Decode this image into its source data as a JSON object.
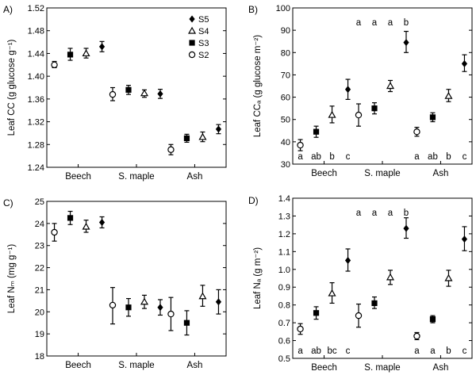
{
  "chart_data": [
    {
      "type": "scatter",
      "panel_label": "A)",
      "ylabel": "Leaf CC (g glucose g⁻¹)",
      "ylim": [
        1.24,
        1.52
      ],
      "yticks": [
        1.24,
        1.28,
        1.32,
        1.36,
        1.4,
        1.44,
        1.48,
        1.52
      ],
      "ytick_labels": [
        "1.24",
        "1.28",
        "1.32",
        "1.36",
        "1.40",
        "1.44",
        "1.48",
        "1.52"
      ],
      "categories": [
        "Beech",
        "S. maple",
        "Ash"
      ],
      "legend": {
        "placement": "top-right",
        "entries": [
          {
            "label": "S5",
            "marker": "diamond"
          },
          {
            "label": "S4",
            "marker": "triangle-open"
          },
          {
            "label": "S3",
            "marker": "square"
          },
          {
            "label": "S2",
            "marker": "circle-open"
          }
        ]
      },
      "groups": [
        {
          "species": "Beech",
          "points": [
            {
              "marker": "circle-open",
              "mean": 1.42,
              "lo": 1.415,
              "hi": 1.426
            },
            {
              "marker": "square",
              "mean": 1.438,
              "lo": 1.428,
              "hi": 1.449
            },
            {
              "marker": "triangle-open",
              "mean": 1.44,
              "lo": 1.432,
              "hi": 1.449
            },
            {
              "marker": "diamond",
              "mean": 1.452,
              "lo": 1.443,
              "hi": 1.461
            }
          ],
          "letters": []
        },
        {
          "species": "S. maple",
          "points": [
            {
              "marker": "circle-open",
              "mean": 1.368,
              "lo": 1.357,
              "hi": 1.38
            },
            {
              "marker": "square",
              "mean": 1.376,
              "lo": 1.368,
              "hi": 1.384
            },
            {
              "marker": "triangle-open",
              "mean": 1.37,
              "lo": 1.363,
              "hi": 1.376
            },
            {
              "marker": "diamond",
              "mean": 1.369,
              "lo": 1.361,
              "hi": 1.377
            }
          ],
          "letters": []
        },
        {
          "species": "Ash",
          "points": [
            {
              "marker": "circle-open",
              "mean": 1.271,
              "lo": 1.262,
              "hi": 1.28
            },
            {
              "marker": "square",
              "mean": 1.291,
              "lo": 1.284,
              "hi": 1.298
            },
            {
              "marker": "triangle-open",
              "mean": 1.293,
              "lo": 1.285,
              "hi": 1.302
            },
            {
              "marker": "diamond",
              "mean": 1.307,
              "lo": 1.299,
              "hi": 1.315
            }
          ],
          "letters": []
        }
      ]
    },
    {
      "type": "scatter",
      "panel_label": "B)",
      "ylabel": "Leaf CCₐ (g glucose m⁻²)",
      "ylim": [
        30,
        100
      ],
      "yticks": [
        30,
        40,
        50,
        60,
        70,
        80,
        90,
        100
      ],
      "ytick_labels": [
        "30",
        "40",
        "50",
        "60",
        "70",
        "80",
        "90",
        "100"
      ],
      "categories": [
        "Beech",
        "S. maple",
        "Ash"
      ],
      "groups": [
        {
          "species": "Beech",
          "points": [
            {
              "marker": "circle-open",
              "mean": 38.5,
              "lo": 36.0,
              "hi": 41.0
            },
            {
              "marker": "square",
              "mean": 44.5,
              "lo": 42.0,
              "hi": 47.0
            },
            {
              "marker": "triangle-open",
              "mean": 52.0,
              "lo": 48.5,
              "hi": 56.0
            },
            {
              "marker": "diamond",
              "mean": 63.5,
              "lo": 59.0,
              "hi": 68.0
            }
          ],
          "letters": [
            "a",
            "ab",
            "b",
            "c"
          ],
          "letters_position": "bottom"
        },
        {
          "species": "S. maple",
          "points": [
            {
              "marker": "circle-open",
              "mean": 52.0,
              "lo": 47.0,
              "hi": 57.0
            },
            {
              "marker": "square",
              "mean": 55.0,
              "lo": 52.5,
              "hi": 57.5
            },
            {
              "marker": "triangle-open",
              "mean": 65.0,
              "lo": 62.5,
              "hi": 67.5
            },
            {
              "marker": "diamond",
              "mean": 84.5,
              "lo": 80.0,
              "hi": 89.5
            }
          ],
          "letters": [
            "a",
            "a",
            "a",
            "b"
          ],
          "letters_position": "top"
        },
        {
          "species": "Ash",
          "points": [
            {
              "marker": "circle-open",
              "mean": 44.5,
              "lo": 42.5,
              "hi": 46.5
            },
            {
              "marker": "square",
              "mean": 51.0,
              "lo": 49.0,
              "hi": 53.0
            },
            {
              "marker": "triangle-open",
              "mean": 60.5,
              "lo": 58.0,
              "hi": 63.5
            },
            {
              "marker": "diamond",
              "mean": 75.0,
              "lo": 71.5,
              "hi": 79.0
            }
          ],
          "letters": [
            "a",
            "ab",
            "b",
            "c"
          ],
          "letters_position": "bottom"
        }
      ]
    },
    {
      "type": "scatter",
      "panel_label": "C)",
      "ylabel": "Leaf Nₘ (mg g⁻¹)",
      "ylim": [
        18,
        25
      ],
      "yticks": [
        18,
        19,
        20,
        21,
        22,
        23,
        24,
        25
      ],
      "ytick_labels": [
        "18",
        "19",
        "20",
        "21",
        "22",
        "23",
        "24",
        "25"
      ],
      "categories": [
        "Beech",
        "S. maple",
        "Ash"
      ],
      "groups": [
        {
          "species": "Beech",
          "points": [
            {
              "marker": "circle-open",
              "mean": 23.6,
              "lo": 23.2,
              "hi": 24.0
            },
            {
              "marker": "square",
              "mean": 24.25,
              "lo": 23.95,
              "hi": 24.55
            },
            {
              "marker": "triangle-open",
              "mean": 23.85,
              "lo": 23.6,
              "hi": 24.15
            },
            {
              "marker": "diamond",
              "mean": 24.05,
              "lo": 23.8,
              "hi": 24.3
            }
          ],
          "letters": []
        },
        {
          "species": "S. maple",
          "points": [
            {
              "marker": "circle-open",
              "mean": 20.3,
              "lo": 19.45,
              "hi": 21.1
            },
            {
              "marker": "square",
              "mean": 20.2,
              "lo": 19.8,
              "hi": 20.6
            },
            {
              "marker": "triangle-open",
              "mean": 20.45,
              "lo": 20.15,
              "hi": 20.75
            },
            {
              "marker": "diamond",
              "mean": 20.2,
              "lo": 19.85,
              "hi": 20.55
            }
          ],
          "letters": []
        },
        {
          "species": "Ash",
          "points": [
            {
              "marker": "circle-open",
              "mean": 19.9,
              "lo": 19.15,
              "hi": 20.65
            },
            {
              "marker": "square",
              "mean": 19.5,
              "lo": 18.95,
              "hi": 20.05
            },
            {
              "marker": "triangle-open",
              "mean": 20.7,
              "lo": 20.25,
              "hi": 21.2
            },
            {
              "marker": "diamond",
              "mean": 20.45,
              "lo": 19.9,
              "hi": 21.0
            }
          ],
          "letters": []
        }
      ]
    },
    {
      "type": "scatter",
      "panel_label": "D)",
      "ylabel": "Leaf Nₐ (g m⁻²)",
      "ylim": [
        0.5,
        1.4
      ],
      "yticks": [
        0.5,
        0.6,
        0.7,
        0.8,
        0.9,
        1.0,
        1.1,
        1.2,
        1.3,
        1.4
      ],
      "ytick_labels": [
        "0.5",
        "0.6",
        "0.7",
        "0.8",
        "0.9",
        "1.0",
        "1.1",
        "1.2",
        "1.3",
        "1.4"
      ],
      "categories": [
        "Beech",
        "S. maple",
        "Ash"
      ],
      "groups": [
        {
          "species": "Beech",
          "points": [
            {
              "marker": "circle-open",
              "mean": 0.665,
              "lo": 0.635,
              "hi": 0.695
            },
            {
              "marker": "square",
              "mean": 0.755,
              "lo": 0.72,
              "hi": 0.79
            },
            {
              "marker": "triangle-open",
              "mean": 0.865,
              "lo": 0.81,
              "hi": 0.925
            },
            {
              "marker": "diamond",
              "mean": 1.05,
              "lo": 0.99,
              "hi": 1.115
            }
          ],
          "letters": [
            "a",
            "ab",
            "bc",
            "c"
          ],
          "letters_position": "bottom"
        },
        {
          "species": "S. maple",
          "points": [
            {
              "marker": "circle-open",
              "mean": 0.74,
              "lo": 0.675,
              "hi": 0.805
            },
            {
              "marker": "square",
              "mean": 0.81,
              "lo": 0.78,
              "hi": 0.845
            },
            {
              "marker": "triangle-open",
              "mean": 0.955,
              "lo": 0.915,
              "hi": 0.995
            },
            {
              "marker": "diamond",
              "mean": 1.23,
              "lo": 1.175,
              "hi": 1.29
            }
          ],
          "letters": [
            "a",
            "a",
            "a",
            "b"
          ],
          "letters_position": "top"
        },
        {
          "species": "Ash",
          "points": [
            {
              "marker": "circle-open",
              "mean": 0.625,
              "lo": 0.605,
              "hi": 0.645
            },
            {
              "marker": "square",
              "mean": 0.72,
              "lo": 0.7,
              "hi": 0.74
            },
            {
              "marker": "triangle-open",
              "mean": 0.95,
              "lo": 0.905,
              "hi": 0.995
            },
            {
              "marker": "diamond",
              "mean": 1.17,
              "lo": 1.105,
              "hi": 1.24
            }
          ],
          "letters": [
            "a",
            "a",
            "b",
            "c"
          ],
          "letters_position": "bottom"
        }
      ]
    }
  ]
}
